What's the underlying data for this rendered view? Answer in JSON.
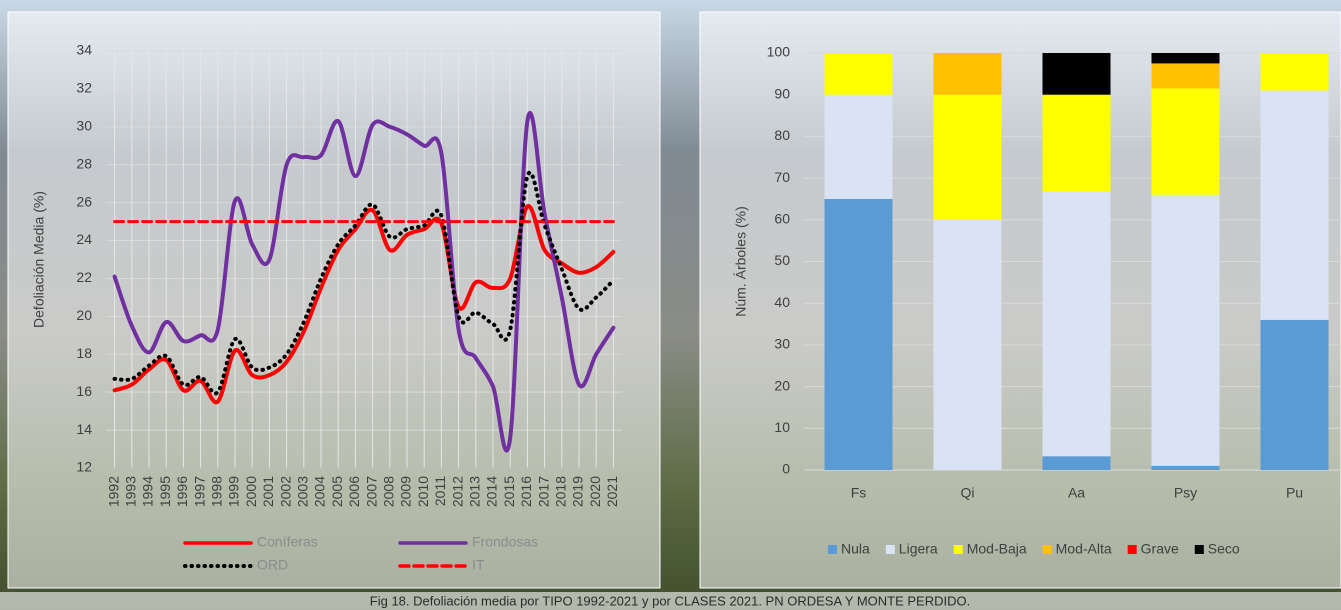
{
  "chart_data": [
    {
      "type": "line",
      "y_label": "Defoliación Media (%)",
      "x": [
        1992,
        1993,
        1994,
        1995,
        1996,
        1997,
        1998,
        1999,
        2000,
        2001,
        2002,
        2003,
        2004,
        2005,
        2006,
        2007,
        2008,
        2009,
        2010,
        2011,
        2012,
        2013,
        2014,
        2015,
        2016,
        2017,
        2018,
        2019,
        2020,
        2021
      ],
      "xlim": [
        1991.5,
        2021.5
      ],
      "ylim": [
        12,
        34
      ],
      "yticks": [
        12,
        14,
        16,
        18,
        20,
        22,
        24,
        26,
        28,
        30,
        32,
        34
      ],
      "grid": true,
      "xgrid": true,
      "series": [
        {
          "name": "Coníferas",
          "color": "#ff0000",
          "style": "solid",
          "values": [
            16.1,
            16.4,
            17.2,
            17.7,
            16.1,
            16.6,
            15.5,
            18.2,
            16.9,
            16.9,
            17.6,
            19.2,
            21.5,
            23.5,
            24.6,
            25.6,
            23.5,
            24.3,
            24.6,
            24.9,
            20.5,
            21.8,
            21.5,
            22.0,
            25.8,
            23.5,
            22.8,
            22.3,
            22.6,
            23.4
          ]
        },
        {
          "name": "Frondosas",
          "color": "#7030a0",
          "style": "solid",
          "values": [
            22.1,
            19.5,
            18.1,
            19.7,
            18.7,
            19.0,
            19.3,
            26.1,
            23.8,
            23.0,
            28.0,
            28.4,
            28.5,
            30.3,
            27.4,
            30.1,
            30.0,
            29.6,
            29.0,
            28.6,
            19.3,
            17.8,
            16.3,
            13.6,
            30.3,
            25.4,
            21.0,
            16.4,
            18.0,
            19.4
          ]
        },
        {
          "name": "ORD",
          "color": "#000000",
          "style": "dotted",
          "values": [
            16.7,
            16.7,
            17.4,
            17.9,
            16.4,
            16.8,
            16.0,
            18.8,
            17.3,
            17.3,
            18.0,
            19.7,
            22.0,
            23.8,
            24.8,
            25.9,
            24.2,
            24.6,
            24.8,
            25.3,
            20.0,
            20.2,
            19.6,
            19.3,
            27.4,
            24.8,
            22.5,
            20.4,
            21.0,
            21.9
          ]
        },
        {
          "name": "IT",
          "color": "#ff0000",
          "style": "dashed",
          "values": [
            25,
            25,
            25,
            25,
            25,
            25,
            25,
            25,
            25,
            25,
            25,
            25,
            25,
            25,
            25,
            25,
            25,
            25,
            25,
            25,
            25,
            25,
            25,
            25,
            25,
            25,
            25,
            25,
            25,
            25
          ]
        }
      ]
    },
    {
      "type": "stacked_bar",
      "y_label": "Núm. Árboles (%)",
      "categories": [
        "Fs",
        "Qi",
        "Aa",
        "Psy",
        "Pu"
      ],
      "ylim": [
        0,
        100
      ],
      "yticks": [
        0,
        10,
        20,
        30,
        40,
        50,
        60,
        70,
        80,
        90,
        100
      ],
      "grid": true,
      "series": [
        {
          "name": "Nula",
          "color": "#5b9bd5",
          "values": [
            65,
            0,
            3.3,
            1,
            36
          ]
        },
        {
          "name": "Ligera",
          "color": "#dae3f3",
          "values": [
            25,
            60,
            63.4,
            65,
            55
          ]
        },
        {
          "name": "Mod-Baja",
          "color": "#ffff00",
          "values": [
            10,
            30,
            23.3,
            25.5,
            9
          ]
        },
        {
          "name": "Mod-Alta",
          "color": "#ffc000",
          "values": [
            0,
            10,
            0,
            6,
            0
          ]
        },
        {
          "name": "Grave",
          "color": "#ff0000",
          "values": [
            0,
            0,
            0,
            0,
            0
          ]
        },
        {
          "name": "Seco",
          "color": "#000000",
          "values": [
            0,
            0,
            10,
            2.5,
            0
          ]
        }
      ]
    }
  ],
  "caption": "Fig 18. Defoliación media por TIPO 1992-2021 y por CLASES 2021. PN ORDESA Y MONTE PERDIDO."
}
